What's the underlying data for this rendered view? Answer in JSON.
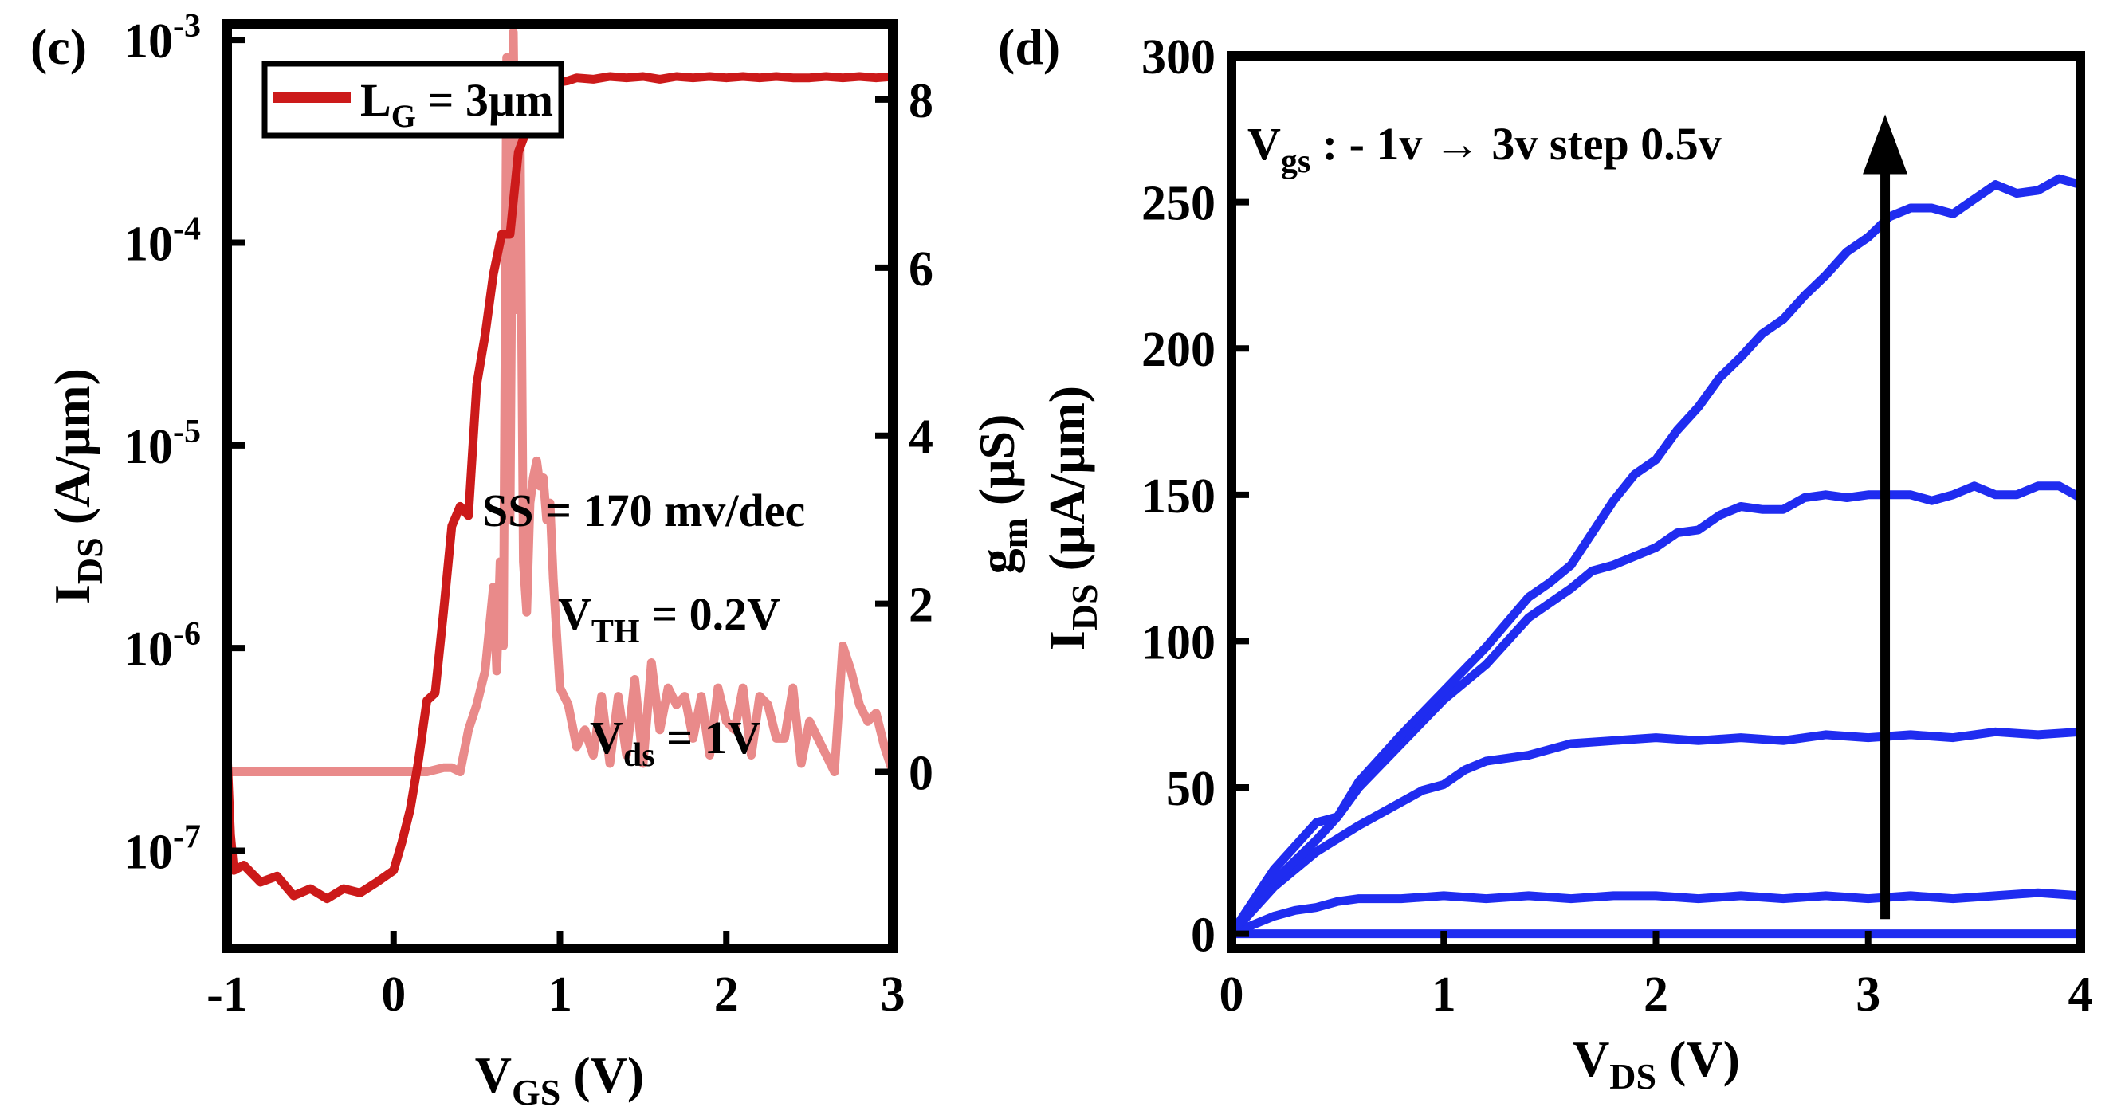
{
  "chart_data": [
    {
      "panel_label": "(c)",
      "type": "line",
      "xlabel": "V",
      "xlabel_sub": "GS",
      "xlabel_unit": " (V)",
      "ylabel": "I",
      "ylabel_sub": "DS",
      "ylabel_unit": " (A/μm)",
      "y2label": "g",
      "y2label_sub": "m",
      "y2label_unit": " (μS)",
      "xlim": [
        -1,
        3
      ],
      "yscale": "log",
      "ylim": [
        3.3e-08,
        0.0012
      ],
      "y2lim": [
        -2.1,
        8.9
      ],
      "xticks": [
        "-1",
        "0",
        "1",
        "2",
        "3"
      ],
      "yticks": [
        {
          "base": "10",
          "exp": "-3",
          "value": 0.001
        },
        {
          "base": "10",
          "exp": "-4",
          "value": 0.0001
        },
        {
          "base": "10",
          "exp": "-5",
          "value": 1e-05
        },
        {
          "base": "10",
          "exp": "-6",
          "value": 1e-06
        },
        {
          "base": "10",
          "exp": "-7",
          "value": 1e-07
        }
      ],
      "y2ticks": [
        "8",
        "6",
        "4",
        "2",
        "0"
      ],
      "legend": {
        "name": "L",
        "sub": "G",
        "rest": " = 3μm",
        "position": "top-left"
      },
      "annotations": [
        {
          "text": "SS = 170 mv/dec"
        },
        {
          "text": "V",
          "sub": "TH",
          "rest": " = 0.2V"
        },
        {
          "text": "V",
          "sub": "ds",
          "rest": " = 1V"
        }
      ],
      "series": [
        {
          "name": "I_DS",
          "axis": "left",
          "color": "#cc1a1a",
          "x": [
            -1.0,
            -0.98,
            -0.96,
            -0.9,
            -0.8,
            -0.7,
            -0.6,
            -0.5,
            -0.4,
            -0.3,
            -0.2,
            -0.1,
            0.0,
            0.05,
            0.1,
            0.15,
            0.2,
            0.25,
            0.3,
            0.35,
            0.4,
            0.45,
            0.5,
            0.55,
            0.6,
            0.65,
            0.7,
            0.75,
            0.8,
            0.85,
            0.9,
            0.95,
            1.0,
            1.05,
            1.1,
            1.2,
            1.3,
            1.4,
            1.5,
            1.6,
            1.7,
            1.8,
            1.9,
            2.0,
            2.1,
            2.2,
            2.3,
            2.4,
            2.5,
            2.6,
            2.7,
            2.8,
            2.9,
            3.0
          ],
          "y": [
            3e-07,
            1.2e-07,
            8e-08,
            8.5e-08,
            7e-08,
            7.5e-08,
            6e-08,
            6.5e-08,
            5.8e-08,
            6.5e-08,
            6.2e-08,
            7e-08,
            8e-08,
            1.1e-07,
            1.6e-07,
            2.8e-07,
            5.5e-07,
            6e-07,
            1.5e-06,
            4e-06,
            5e-06,
            4.5e-06,
            2e-05,
            3.5e-05,
            7e-05,
            0.00011,
            0.00011,
            0.00028,
            0.00036,
            0.00045,
            0.00052,
            0.00058,
            0.00062,
            0.00063,
            0.00065,
            0.00064,
            0.00066,
            0.00065,
            0.00066,
            0.00064,
            0.00066,
            0.00065,
            0.00066,
            0.00065,
            0.00066,
            0.00065,
            0.00066,
            0.00065,
            0.00065,
            0.00066,
            0.00065,
            0.00066,
            0.00065,
            0.00066
          ]
        },
        {
          "name": "g_m",
          "axis": "right",
          "color": "#e98a8a",
          "x": [
            -1.0,
            -0.9,
            -0.8,
            -0.7,
            -0.6,
            -0.5,
            -0.4,
            -0.3,
            -0.2,
            -0.1,
            0.0,
            0.1,
            0.2,
            0.3,
            0.35,
            0.4,
            0.45,
            0.5,
            0.55,
            0.6,
            0.62,
            0.64,
            0.66,
            0.68,
            0.7,
            0.72,
            0.74,
            0.76,
            0.78,
            0.8,
            0.82,
            0.84,
            0.86,
            0.88,
            0.9,
            0.92,
            0.94,
            0.96,
            1.0,
            1.05,
            1.1,
            1.15,
            1.2,
            1.25,
            1.3,
            1.35,
            1.4,
            1.45,
            1.5,
            1.55,
            1.6,
            1.65,
            1.7,
            1.75,
            1.8,
            1.85,
            1.9,
            1.95,
            2.0,
            2.05,
            2.1,
            2.15,
            2.2,
            2.25,
            2.3,
            2.35,
            2.4,
            2.45,
            2.5,
            2.55,
            2.6,
            2.65,
            2.7,
            2.75,
            2.8,
            2.85,
            2.9,
            2.95,
            3.0
          ],
          "y": [
            0.0,
            0.0,
            0.0,
            0.0,
            0.0,
            0.0,
            0.0,
            0.0,
            0.0,
            0.0,
            0.0,
            0.0,
            0.0,
            0.05,
            0.05,
            0.0,
            0.5,
            0.8,
            1.2,
            2.2,
            1.2,
            2.5,
            1.5,
            8.5,
            3.0,
            8.8,
            5.5,
            7.8,
            2.5,
            1.9,
            3.2,
            3.5,
            3.7,
            3.4,
            3.5,
            3.0,
            3.2,
            2.3,
            1.0,
            0.8,
            0.3,
            0.5,
            0.2,
            0.9,
            0.1,
            0.9,
            0.2,
            1.1,
            0.1,
            1.3,
            0.5,
            1.0,
            0.8,
            0.9,
            0.4,
            0.9,
            0.2,
            1.0,
            0.6,
            0.5,
            1.0,
            0.2,
            0.9,
            0.8,
            0.4,
            0.4,
            1.0,
            0.1,
            0.6,
            0.4,
            0.2,
            0.0,
            1.5,
            1.2,
            0.8,
            0.6,
            0.7,
            0.3,
            0.0
          ]
        }
      ]
    },
    {
      "panel_label": "(d)",
      "type": "line",
      "xlabel": "V",
      "xlabel_sub": "DS",
      "xlabel_unit": " (V)",
      "ylabel": "I",
      "ylabel_sub": "DS",
      "ylabel_unit": " (μA/μm)",
      "xlim": [
        0,
        4
      ],
      "ylim": [
        -5,
        300
      ],
      "xticks": [
        "0",
        "1",
        "2",
        "3",
        "4"
      ],
      "yticks": [
        "300",
        "250",
        "200",
        "150",
        "100",
        "50",
        "0"
      ],
      "annotation": {
        "prefix": "V",
        "sub": "gs",
        "text": " :  - 1v → 3v step 0.5v"
      },
      "arrow": {
        "x": 3.08,
        "y_from": 5,
        "y_to": 280
      },
      "line_color": "#1f2cf0",
      "series": [
        {
          "name": "curve1",
          "x": [
            0,
            4
          ],
          "y": [
            0,
            0
          ]
        },
        {
          "name": "curve2",
          "x": [
            0,
            0.1,
            0.2,
            0.3,
            0.4,
            0.5,
            0.6,
            0.8,
            1.0,
            1.2,
            1.4,
            1.6,
            1.8,
            2.0,
            2.2,
            2.4,
            2.6,
            2.8,
            3.0,
            3.2,
            3.4,
            3.6,
            3.8,
            4.0
          ],
          "y": [
            0,
            3,
            6,
            8,
            9,
            11,
            12,
            12,
            13,
            12,
            13,
            12,
            13,
            13,
            12,
            13,
            12,
            13,
            12,
            13,
            12,
            13,
            14,
            13
          ]
        },
        {
          "name": "curve3",
          "x": [
            0,
            0.2,
            0.4,
            0.6,
            0.8,
            0.9,
            1.0,
            1.1,
            1.2,
            1.3,
            1.4,
            1.6,
            1.8,
            2.0,
            2.2,
            2.4,
            2.6,
            2.8,
            3.0,
            3.2,
            3.4,
            3.6,
            3.8,
            4.0
          ],
          "y": [
            0,
            16,
            28,
            37,
            45,
            49,
            51,
            56,
            59,
            60,
            61,
            65,
            66,
            67,
            66,
            67,
            66,
            68,
            67,
            68,
            67,
            69,
            68,
            69
          ]
        },
        {
          "name": "curve4",
          "x": [
            0,
            0.2,
            0.4,
            0.5,
            0.6,
            0.8,
            1.0,
            1.2,
            1.4,
            1.6,
            1.7,
            1.8,
            2.0,
            2.1,
            2.2,
            2.3,
            2.4,
            2.5,
            2.6,
            2.7,
            2.8,
            2.9,
            3.0,
            3.1,
            3.2,
            3.3,
            3.4,
            3.5,
            3.6,
            3.7,
            3.8,
            3.9,
            4.0
          ],
          "y": [
            0,
            18,
            32,
            40,
            50,
            65,
            80,
            92,
            108,
            118,
            124,
            126,
            132,
            137,
            138,
            143,
            146,
            145,
            145,
            149,
            150,
            149,
            150,
            150,
            150,
            148,
            150,
            153,
            150,
            150,
            153,
            153,
            149
          ]
        },
        {
          "name": "curve5",
          "x": [
            0,
            0.2,
            0.4,
            0.5,
            0.6,
            0.8,
            1.0,
            1.2,
            1.4,
            1.5,
            1.6,
            1.7,
            1.8,
            1.9,
            2.0,
            2.1,
            2.2,
            2.3,
            2.4,
            2.5,
            2.6,
            2.7,
            2.8,
            2.9,
            3.0,
            3.1,
            3.2,
            3.3,
            3.4,
            3.5,
            3.6,
            3.7,
            3.8,
            3.9,
            4.0
          ],
          "y": [
            0,
            22,
            38,
            40,
            52,
            68,
            83,
            98,
            115,
            120,
            126,
            137,
            148,
            157,
            162,
            172,
            180,
            190,
            197,
            205,
            210,
            218,
            225,
            233,
            238,
            245,
            248,
            248,
            246,
            251,
            256,
            253,
            254,
            258,
            256
          ]
        }
      ]
    }
  ]
}
